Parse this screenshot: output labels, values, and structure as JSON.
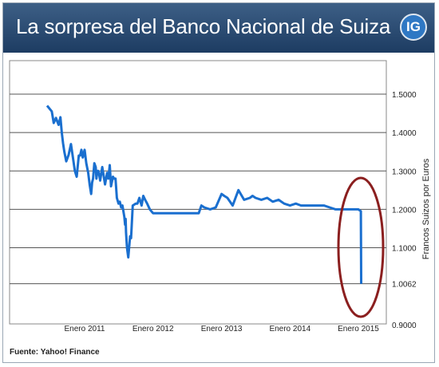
{
  "header": {
    "title": "La sorpresa del Banco Nacional de Suiza",
    "logo": "IG"
  },
  "source": "Fuente: Yahoo! Finance",
  "colors": {
    "line": "#1a6fcf",
    "highlight": "#8b1f1f",
    "header": "#2b4a70"
  },
  "chart_data": {
    "type": "line",
    "ylabel": "Francos Suizos por Euros",
    "ylim": [
      0.9,
      1.55
    ],
    "y_ticks": [
      "1.5000",
      "1.4000",
      "1.3000",
      "1.2000",
      "1.1000",
      "1.0062",
      "0.9000"
    ],
    "x_ticks": [
      "Enero 2011",
      "Enero 2012",
      "Enero 2013",
      "Enero 2014",
      "Enero 2015"
    ],
    "grid": "horizontal",
    "annotation": "ellipse around the January 2015 drop",
    "series": [
      {
        "x": [
          "2010-06-15",
          "2010-07-10",
          "2010-07-20",
          "2010-08-01",
          "2010-08-15",
          "2010-08-25",
          "2010-09-01",
          "2010-09-08",
          "2010-09-15",
          "2010-09-25",
          "2010-10-08",
          "2010-10-20",
          "2010-11-01",
          "2010-11-10",
          "2010-11-20",
          "2010-12-01",
          "2010-12-08",
          "2010-12-15",
          "2010-12-22",
          "2011-01-01",
          "2011-01-10",
          "2011-01-20",
          "2011-01-28",
          "2011-02-05",
          "2011-02-10",
          "2011-02-15",
          "2011-02-22",
          "2011-03-01",
          "2011-03-05",
          "2011-03-10",
          "2011-03-15",
          "2011-03-20",
          "2011-03-25",
          "2011-04-05",
          "2011-04-20",
          "2011-05-01",
          "2011-05-08",
          "2011-05-15",
          "2011-05-22",
          "2011-06-01",
          "2011-06-08",
          "2011-06-15",
          "2011-06-22",
          "2011-07-01",
          "2011-07-08",
          "2011-07-15",
          "2011-07-22",
          "2011-08-01",
          "2011-08-05",
          "2011-08-08",
          "2011-08-10",
          "2011-08-15",
          "2011-08-22",
          "2011-09-01",
          "2011-09-06",
          "2011-09-15",
          "2011-10-01",
          "2011-10-10",
          "2011-10-20",
          "2011-11-01",
          "2011-11-10",
          "2011-11-20",
          "2011-12-01",
          "2011-12-15",
          "2012-01-01",
          "2012-02-01",
          "2012-03-01",
          "2012-04-01",
          "2012-05-01",
          "2012-06-01",
          "2012-07-01",
          "2012-08-01",
          "2012-09-01",
          "2012-09-15",
          "2012-10-01",
          "2012-11-01",
          "2012-12-01",
          "2013-01-01",
          "2013-01-15",
          "2013-02-01",
          "2013-03-01",
          "2013-04-01",
          "2013-05-01",
          "2013-06-01",
          "2013-06-15",
          "2013-07-01",
          "2013-08-01",
          "2013-09-01",
          "2013-10-01",
          "2013-11-01",
          "2013-12-01",
          "2014-01-01",
          "2014-02-01",
          "2014-03-01",
          "2014-04-01",
          "2014-05-01",
          "2014-06-01",
          "2014-07-01",
          "2014-08-01",
          "2014-09-01",
          "2014-10-01",
          "2014-11-01",
          "2014-12-01",
          "2015-01-01",
          "2015-01-14",
          "2015-01-15",
          "2015-01-16"
        ],
        "y": [
          1.47,
          1.455,
          1.425,
          1.438,
          1.42,
          1.44,
          1.4,
          1.372,
          1.35,
          1.325,
          1.342,
          1.37,
          1.33,
          1.3,
          1.285,
          1.34,
          1.34,
          1.355,
          1.335,
          1.355,
          1.32,
          1.295,
          1.265,
          1.24,
          1.27,
          1.28,
          1.32,
          1.31,
          1.28,
          1.3,
          1.3,
          1.29,
          1.275,
          1.31,
          1.265,
          1.295,
          1.28,
          1.315,
          1.26,
          1.285,
          1.28,
          1.28,
          1.23,
          1.215,
          1.22,
          1.205,
          1.21,
          1.18,
          1.16,
          1.175,
          1.14,
          1.1,
          1.075,
          1.13,
          1.125,
          1.21,
          1.215,
          1.215,
          1.23,
          1.21,
          1.235,
          1.225,
          1.215,
          1.2,
          1.19,
          1.19,
          1.19,
          1.19,
          1.19,
          1.19,
          1.19,
          1.19,
          1.19,
          1.21,
          1.205,
          1.2,
          1.205,
          1.24,
          1.235,
          1.23,
          1.21,
          1.25,
          1.225,
          1.23,
          1.235,
          1.23,
          1.225,
          1.23,
          1.22,
          1.225,
          1.215,
          1.21,
          1.215,
          1.21,
          1.21,
          1.21,
          1.21,
          1.21,
          1.205,
          1.2,
          1.2,
          1.2,
          1.2,
          1.2,
          1.195,
          1.1,
          1.0062
        ]
      }
    ]
  }
}
